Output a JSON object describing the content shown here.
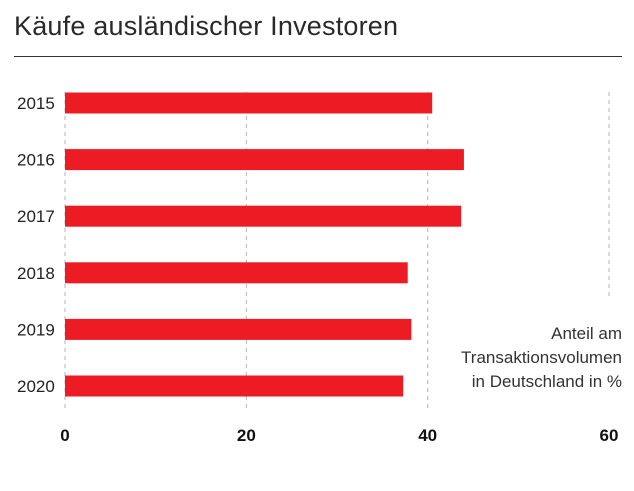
{
  "chart_data": {
    "type": "bar",
    "orientation": "horizontal",
    "title": "Käufe ausländischer Investoren",
    "categories": [
      "2015",
      "2016",
      "2017",
      "2018",
      "2019",
      "2020"
    ],
    "values": [
      40.5,
      44,
      43.7,
      37.8,
      38.2,
      37.3
    ],
    "xlim": [
      0,
      60
    ],
    "xticks": [
      "0",
      "20",
      "40",
      "60"
    ],
    "bar_color": "#ed1c24",
    "grid": true,
    "axis_note": [
      "Anteil am",
      "Transaktionsvolumen",
      "in Deutschland in %"
    ]
  }
}
